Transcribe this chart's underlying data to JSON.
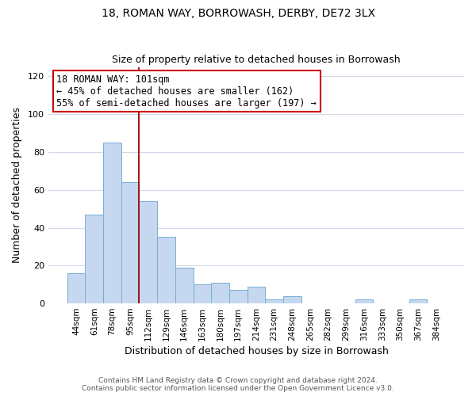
{
  "title": "18, ROMAN WAY, BORROWASH, DERBY, DE72 3LX",
  "subtitle": "Size of property relative to detached houses in Borrowash",
  "xlabel": "Distribution of detached houses by size in Borrowash",
  "ylabel": "Number of detached properties",
  "bar_color": "#c5d8ef",
  "bar_edge_color": "#7aadd4",
  "categories": [
    "44sqm",
    "61sqm",
    "78sqm",
    "95sqm",
    "112sqm",
    "129sqm",
    "146sqm",
    "163sqm",
    "180sqm",
    "197sqm",
    "214sqm",
    "231sqm",
    "248sqm",
    "265sqm",
    "282sqm",
    "299sqm",
    "316sqm",
    "333sqm",
    "350sqm",
    "367sqm",
    "384sqm"
  ],
  "values": [
    16,
    47,
    85,
    64,
    54,
    35,
    19,
    10,
    11,
    7,
    9,
    2,
    4,
    0,
    0,
    0,
    2,
    0,
    0,
    2,
    0
  ],
  "ylim": [
    0,
    125
  ],
  "yticks": [
    0,
    20,
    40,
    60,
    80,
    100,
    120
  ],
  "vline_x": 3.5,
  "vline_color": "#990000",
  "annotation_title": "18 ROMAN WAY: 101sqm",
  "annotation_line1": "← 45% of detached houses are smaller (162)",
  "annotation_line2": "55% of semi-detached houses are larger (197) →",
  "annotation_box_color": "#ffffff",
  "annotation_box_edge": "#cc0000",
  "footer1": "Contains HM Land Registry data © Crown copyright and database right 2024.",
  "footer2": "Contains public sector information licensed under the Open Government Licence v3.0.",
  "background_color": "#ffffff",
  "grid_color": "#d0d8e8"
}
